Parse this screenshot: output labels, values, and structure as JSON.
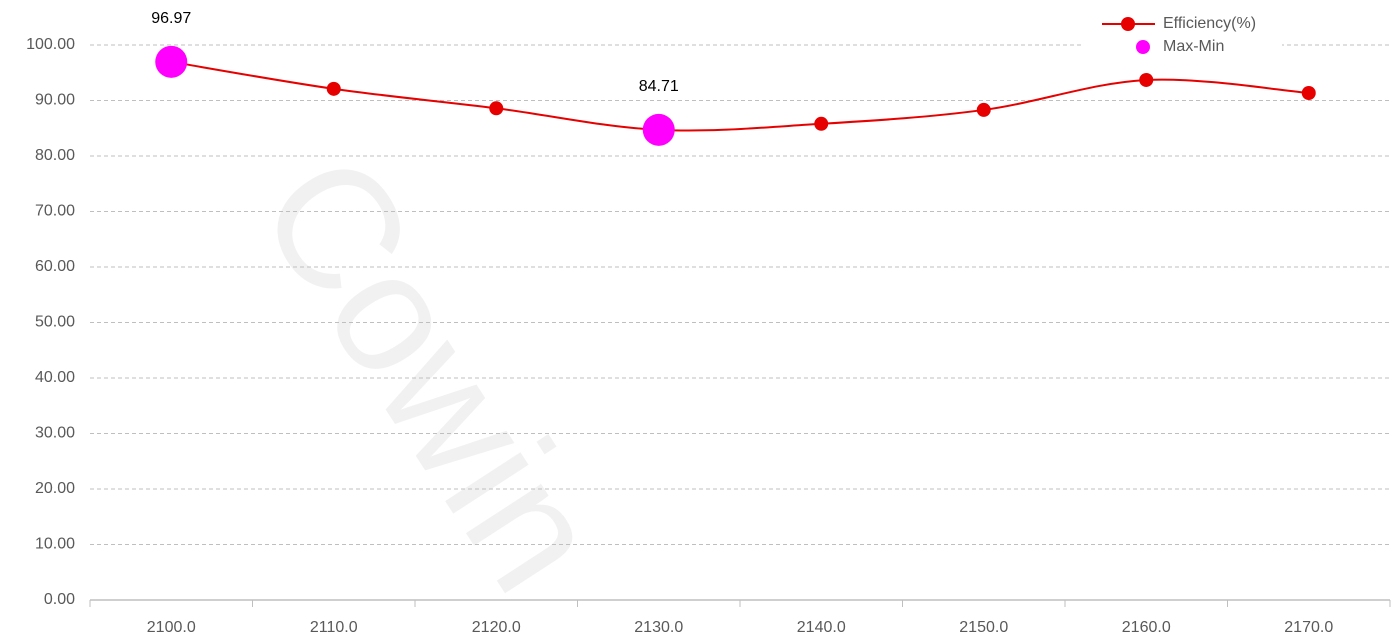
{
  "chart_data": {
    "type": "line",
    "watermark": "Cowin",
    "categories": [
      "2100.0",
      "2110.0",
      "2120.0",
      "2130.0",
      "2140.0",
      "2150.0",
      "2160.0",
      "2170.0"
    ],
    "series": [
      {
        "name": "Efficiency(%)",
        "color": "#e60000",
        "values": [
          96.97,
          92.1,
          88.6,
          84.71,
          85.8,
          88.3,
          93.7,
          91.35
        ]
      },
      {
        "name": "Max-Min",
        "color": "#ff00ff",
        "values": [
          96.97,
          null,
          null,
          84.71,
          null,
          null,
          null,
          null
        ]
      }
    ],
    "ylim": [
      0,
      100
    ],
    "yticks": [
      {
        "value": 0,
        "label": "0.00"
      },
      {
        "value": 10,
        "label": "10.00"
      },
      {
        "value": 20,
        "label": "20.00"
      },
      {
        "value": 30,
        "label": "30.00"
      },
      {
        "value": 40,
        "label": "40.00"
      },
      {
        "value": 50,
        "label": "50.00"
      },
      {
        "value": 60,
        "label": "60.00"
      },
      {
        "value": 70,
        "label": "70.00"
      },
      {
        "value": 80,
        "label": "80.00"
      },
      {
        "value": 90,
        "label": "90.00"
      },
      {
        "value": 100,
        "label": "100.00"
      }
    ],
    "grid": true,
    "smooth": true,
    "legend": "top-right"
  }
}
